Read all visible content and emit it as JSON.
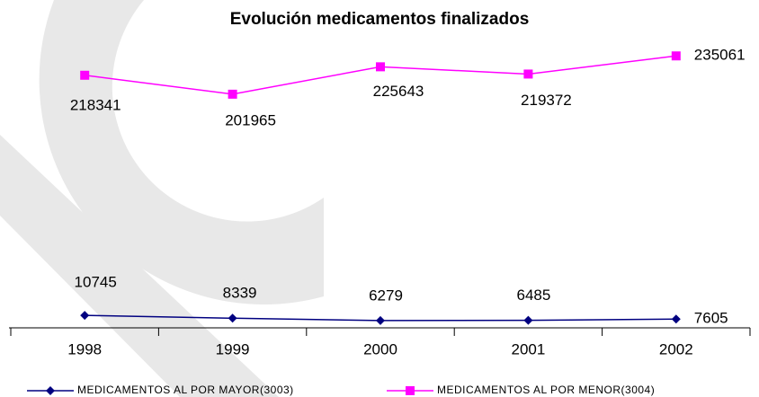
{
  "chart_data": {
    "type": "line",
    "title": "Evolución medicamentos finalizados",
    "categories": [
      "1998",
      "1999",
      "2000",
      "2001",
      "2002"
    ],
    "series": [
      {
        "name": "MEDICAMENTOS AL POR MAYOR(3003)",
        "color": "#000080",
        "marker": "diamond",
        "values": [
          10745,
          8339,
          6279,
          6485,
          7605
        ]
      },
      {
        "name": "MEDICAMENTOS AL POR MENOR(3004)",
        "color": "#ff00ff",
        "marker": "square",
        "values": [
          218341,
          201965,
          225643,
          219372,
          235061
        ]
      }
    ],
    "ylim": [
      0,
      250000
    ],
    "legend": "bottom"
  }
}
